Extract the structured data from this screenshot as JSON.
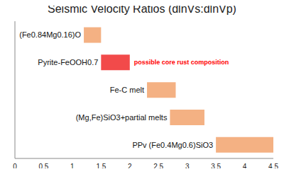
{
  "chart_data": {
    "type": "bar",
    "orientation": "horizontal",
    "title": "Seismic Velocity Ratios (dlnVs:dlnVp)",
    "categories": [
      "(Fe0.84Mg0.16)O",
      "Pyrite-FeOOH0.7",
      "Fe-C melt",
      "(Mg,Fe)SiO3+partial melts",
      "PPv (Fe0.4Mg0.6)SiO3"
    ],
    "values": [
      [
        1.2,
        1.5
      ],
      [
        1.5,
        2.0
      ],
      [
        2.3,
        2.8
      ],
      [
        2.7,
        3.3
      ],
      [
        3.5,
        4.5
      ]
    ],
    "colors": [
      "#f4b183",
      "#f24a4a",
      "#f4b183",
      "#f4b183",
      "#f4b183"
    ],
    "xlim": [
      0,
      4.5
    ],
    "xticks": [
      0,
      0.5,
      1,
      1.5,
      2,
      2.5,
      3,
      3.5,
      4,
      4.5
    ],
    "grid": false,
    "annotations": [
      {
        "text": "possible core rust composition",
        "category": "Pyrite-FeOOH0.7",
        "color": "#ff0000"
      }
    ]
  }
}
